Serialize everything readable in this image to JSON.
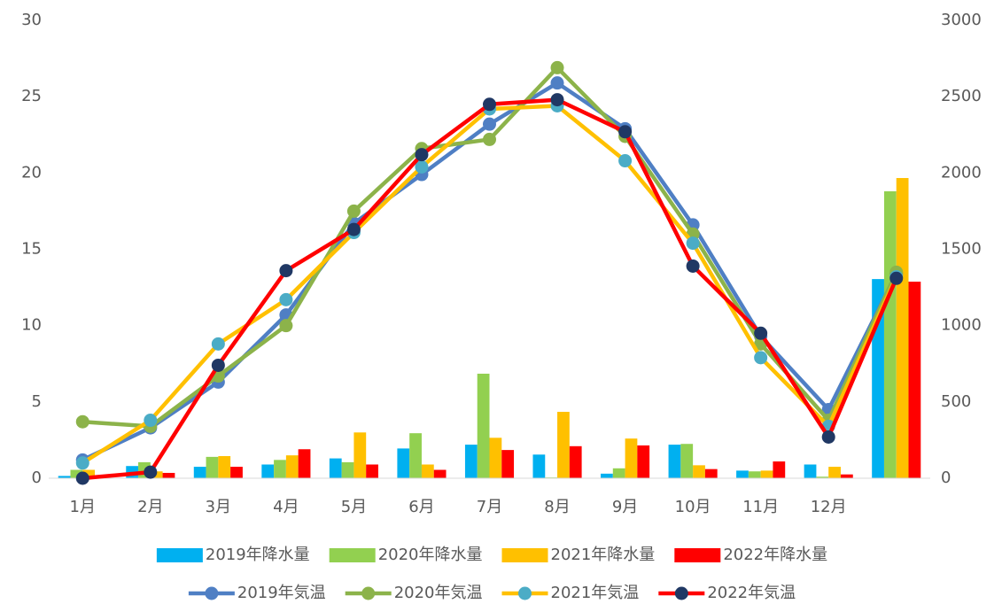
{
  "chart_data": {
    "type": "combo",
    "categories": [
      "1月",
      "2月",
      "3月",
      "4月",
      "5月",
      "6月",
      "7月",
      "8月",
      "9月",
      "10月",
      "11月",
      "12月",
      null
    ],
    "ylim": [
      0,
      30
    ],
    "yticks": [
      0,
      5,
      10,
      15,
      20,
      25,
      30
    ],
    "y2lim": [
      0,
      3000
    ],
    "y2ticks": [
      0,
      500,
      1000,
      1500,
      2000,
      2500,
      3000
    ],
    "grid": false,
    "legend": "bottom",
    "series": [
      {
        "name": "2019年降水量",
        "type": "bar",
        "axis": "y2",
        "color": "#00b0f0",
        "values": [
          15,
          80,
          75,
          90,
          130,
          195,
          220,
          155,
          30,
          220,
          50,
          90,
          1305
        ]
      },
      {
        "name": "2020年降水量",
        "type": "bar",
        "axis": "y2",
        "color": "#92d050",
        "values": [
          55,
          105,
          140,
          120,
          105,
          295,
          685,
          5,
          65,
          225,
          45,
          10,
          1880
        ]
      },
      {
        "name": "2021年降水量",
        "type": "bar",
        "axis": "y2",
        "color": "#ffc000",
        "values": [
          55,
          45,
          145,
          150,
          300,
          90,
          265,
          435,
          260,
          85,
          50,
          75,
          1967
        ]
      },
      {
        "name": "2022年降水量",
        "type": "bar",
        "axis": "y2",
        "color": "#ff0000",
        "values": [
          5,
          35,
          75,
          190,
          90,
          55,
          185,
          210,
          215,
          60,
          110,
          25,
          1288
        ]
      },
      {
        "name": "2019年気温",
        "type": "line",
        "axis": "y",
        "color": "#4f7fc4",
        "marker_color": "#4f7fc4",
        "values": [
          1.2,
          3.3,
          6.3,
          10.7,
          16.7,
          19.9,
          23.2,
          25.9,
          22.9,
          16.6,
          9.3,
          4.5,
          13.4
        ]
      },
      {
        "name": "2020年気温",
        "type": "line",
        "axis": "y",
        "color": "#8cb34a",
        "marker_color": "#8cb34a",
        "values": [
          3.7,
          3.4,
          6.7,
          10.0,
          17.5,
          21.6,
          22.2,
          26.9,
          22.4,
          16.0,
          8.8,
          3.8,
          13.5
        ]
      },
      {
        "name": "2021年気温",
        "type": "line",
        "axis": "y",
        "color": "#ffc000",
        "marker_color": "#4bacc6",
        "values": [
          1.0,
          3.8,
          8.8,
          11.7,
          16.1,
          20.4,
          24.2,
          24.4,
          20.8,
          15.4,
          7.9,
          3.4,
          13.2
        ]
      },
      {
        "name": "2022年気温",
        "type": "line",
        "axis": "y",
        "color": "#ff0000",
        "marker_color": "#203864",
        "values": [
          0.0,
          0.4,
          7.4,
          13.6,
          16.3,
          21.2,
          24.5,
          24.8,
          22.7,
          13.9,
          9.5,
          2.7,
          13.1
        ]
      }
    ]
  }
}
